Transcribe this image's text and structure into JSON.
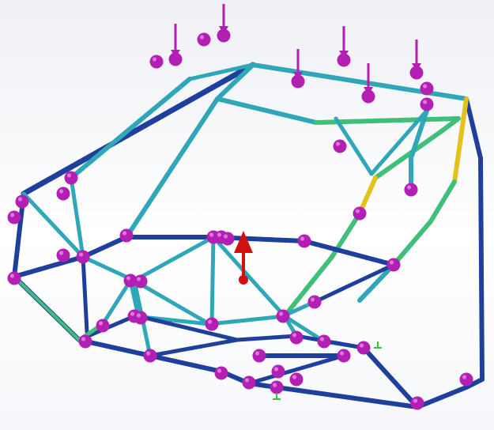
{
  "viewport": {
    "background_top": "#eef0f5",
    "background_bottom": "#ffffff"
  },
  "colors": {
    "stress_low": "#1f3f9c",
    "stress_mid": "#2fa7b8",
    "stress_midhigh": "#3fbf7a",
    "stress_high": "#e3c21a",
    "stress_max": "#d7261e",
    "fixture_marker": "#b31fb3",
    "load_arrow": "#b31fb3",
    "gravity_arrow": "#d31010",
    "ground_symbol": "#3fbf3f"
  },
  "icons": {
    "fixture": "fixture-sphere-icon",
    "load": "load-arrow-icon",
    "gravity": "gravity-arrow-icon",
    "ground": "ground-symbol-icon"
  }
}
